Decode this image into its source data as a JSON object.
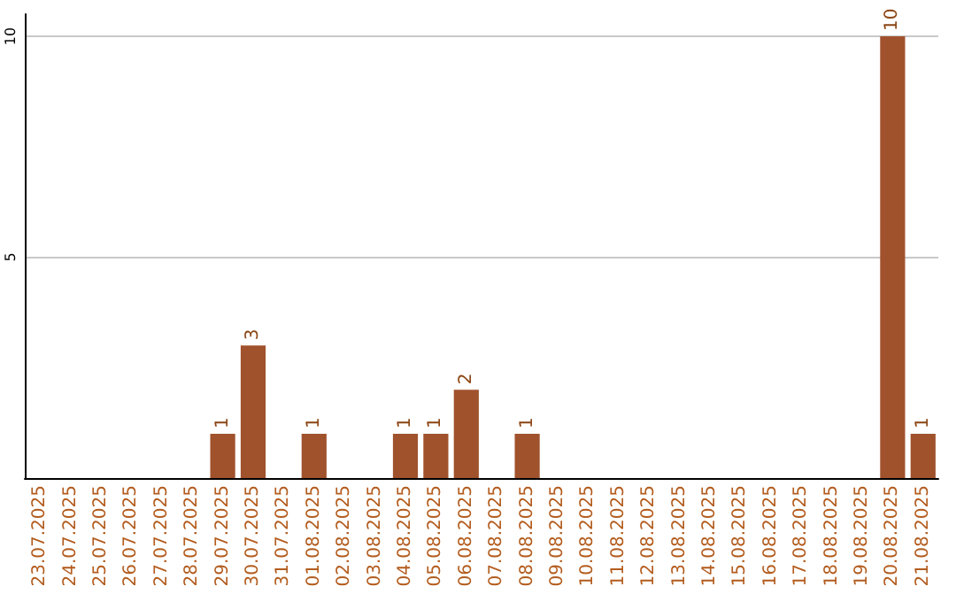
{
  "chart_data": {
    "type": "bar",
    "categories": [
      "23.07.2025",
      "24.07.2025",
      "25.07.2025",
      "26.07.2025",
      "27.07.2025",
      "28.07.2025",
      "29.07.2025",
      "30.07.2025",
      "31.07.2025",
      "01.08.2025",
      "02.08.2025",
      "03.08.2025",
      "04.08.2025",
      "05.08.2025",
      "06.08.2025",
      "07.08.2025",
      "08.08.2025",
      "09.08.2025",
      "10.08.2025",
      "11.08.2025",
      "12.08.2025",
      "13.08.2025",
      "14.08.2025",
      "15.08.2025",
      "16.08.2025",
      "17.08.2025",
      "18.08.2025",
      "19.08.2025",
      "20.08.2025",
      "21.08.2025"
    ],
    "values": [
      0,
      0,
      0,
      0,
      0,
      0,
      1,
      3,
      0,
      1,
      0,
      0,
      1,
      1,
      2,
      0,
      1,
      0,
      0,
      0,
      0,
      0,
      0,
      0,
      0,
      0,
      0,
      0,
      10,
      1
    ],
    "value_labels": [
      null,
      null,
      null,
      null,
      null,
      null,
      "1",
      "3",
      null,
      "1",
      null,
      null,
      "1",
      "1",
      "2",
      null,
      "1",
      null,
      null,
      null,
      null,
      null,
      null,
      null,
      null,
      null,
      null,
      null,
      "10",
      "1"
    ],
    "color": "#a0522d",
    "ylim": [
      0,
      10.5
    ],
    "yticks": [
      {
        "value": 0,
        "label": null
      },
      5,
      10
    ],
    "grid": "y"
  }
}
